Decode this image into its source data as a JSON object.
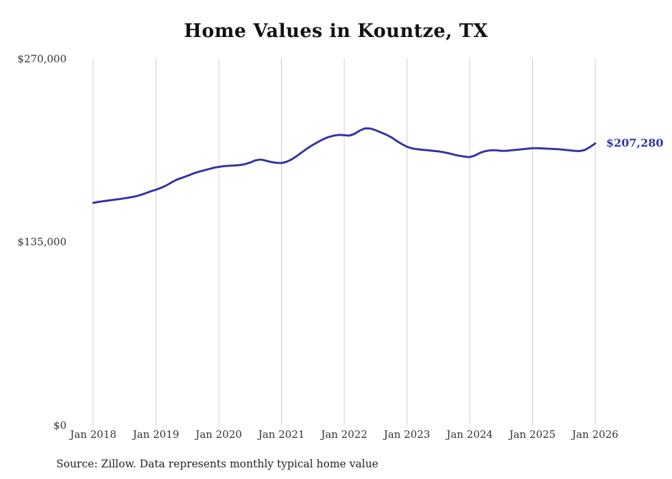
{
  "chart_data": {
    "type": "line",
    "title": "Home Values in Kountze, TX",
    "source_note": "Source: Zillow. Data represents monthly typical home value",
    "end_label": "$207,280",
    "latest_value": 207280,
    "x_start": "Jan 2018",
    "x_frequency": "monthly",
    "x_tick_labels": [
      "Jan 2018",
      "Jan 2019",
      "Jan 2020",
      "Jan 2021",
      "Jan 2022",
      "Jan 2023",
      "Jan 2024",
      "Jan 2025",
      "Jan 2026"
    ],
    "y_tick_labels": [
      "$270,000",
      "$135,000",
      "$0"
    ],
    "ylim": [
      0,
      270000
    ],
    "grid": "vertical-only",
    "legend": "none",
    "line_color": "#3333a3",
    "grid_color": "#cccccc",
    "values": [
      163500,
      164200,
      164800,
      165300,
      165800,
      166300,
      166900,
      167500,
      168200,
      169200,
      170600,
      172000,
      173200,
      174600,
      176400,
      178600,
      180600,
      182000,
      183400,
      184900,
      186200,
      187300,
      188300,
      189300,
      190000,
      190500,
      190800,
      191000,
      191300,
      192000,
      193200,
      194800,
      195400,
      194600,
      193600,
      193000,
      192800,
      193800,
      195600,
      198200,
      201000,
      203800,
      206200,
      208400,
      210400,
      212000,
      213000,
      213600,
      213400,
      213000,
      214400,
      216800,
      218400,
      218200,
      217000,
      215400,
      213800,
      211800,
      209200,
      206800,
      204800,
      203600,
      203000,
      202600,
      202200,
      201800,
      201400,
      200800,
      200000,
      199000,
      198200,
      197600,
      197200,
      198400,
      200400,
      201600,
      202200,
      202200,
      201800,
      201800,
      202200,
      202600,
      203000,
      203400,
      203800,
      203800,
      203600,
      203400,
      203200,
      203000,
      202600,
      202200,
      201800,
      201600,
      202400,
      204600,
      207280
    ]
  }
}
